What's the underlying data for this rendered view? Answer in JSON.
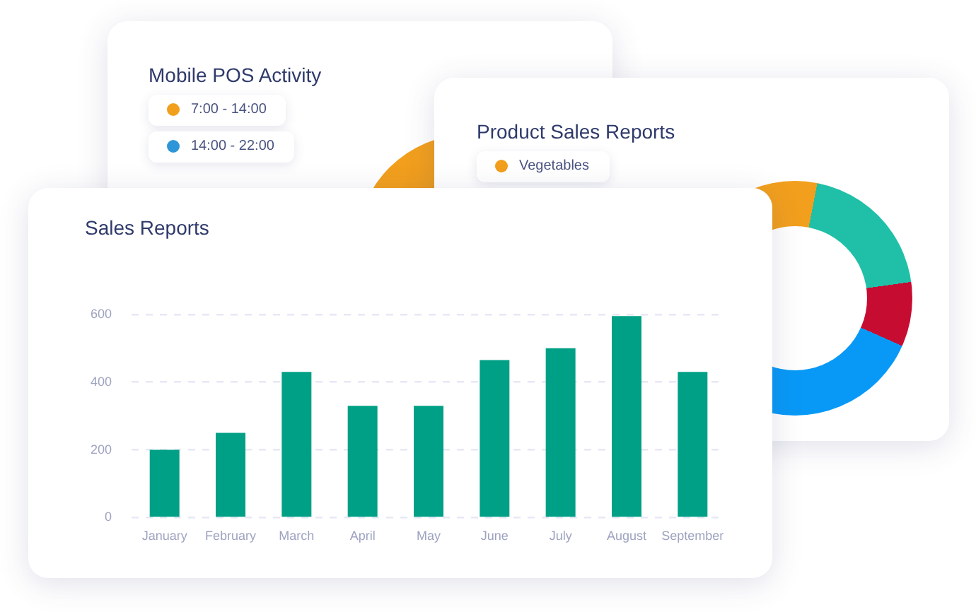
{
  "chart_data": [
    {
      "type": "other",
      "title": "Mobile POS Activity",
      "annotations": [
        "7:00 - 14:00",
        "14:00 - 22:00"
      ]
    },
    {
      "type": "other",
      "title": "Product Sales Reports",
      "annotations": [
        "Vegetables"
      ]
    },
    {
      "type": "bar",
      "title": "Sales Reports",
      "categories": [
        "January",
        "February",
        "March",
        "April",
        "May",
        "June",
        "July",
        "August",
        "September"
      ],
      "values": [
        200,
        250,
        430,
        330,
        330,
        465,
        500,
        595,
        430
      ],
      "color": "#00a086",
      "ylim": [
        0,
        600
      ],
      "yticks": [
        0,
        200,
        400,
        600
      ],
      "grid": "y"
    }
  ]
}
